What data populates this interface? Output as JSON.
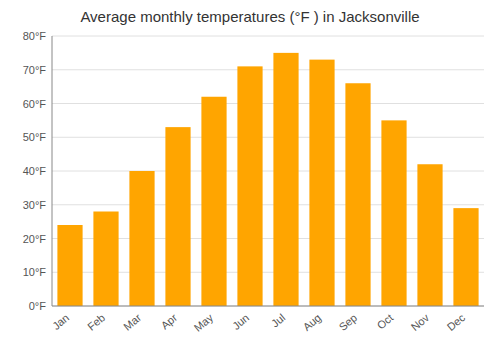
{
  "chart_data": {
    "type": "bar",
    "title": "Average monthly temperatures (°F ) in Jacksonville",
    "categories": [
      "Jan",
      "Feb",
      "Mar",
      "Apr",
      "May",
      "Jun",
      "Jul",
      "Aug",
      "Sep",
      "Oct",
      "Nov",
      "Dec"
    ],
    "values": [
      24,
      28,
      40,
      53,
      62,
      71,
      75,
      73,
      66,
      55,
      42,
      29
    ],
    "color": "#FFA500",
    "ylim": [
      0,
      80
    ],
    "yticks": [
      {
        "value": 0,
        "label": "0°F"
      },
      {
        "value": 10,
        "label": "10°F"
      },
      {
        "value": 20,
        "label": "20°F"
      },
      {
        "value": 30,
        "label": "30°F"
      },
      {
        "value": 40,
        "label": "40°F"
      },
      {
        "value": 50,
        "label": "50°F"
      },
      {
        "value": 60,
        "label": "60°F"
      },
      {
        "value": 70,
        "label": "70°F"
      },
      {
        "value": 80,
        "label": "80°F"
      }
    ],
    "grid": true
  }
}
